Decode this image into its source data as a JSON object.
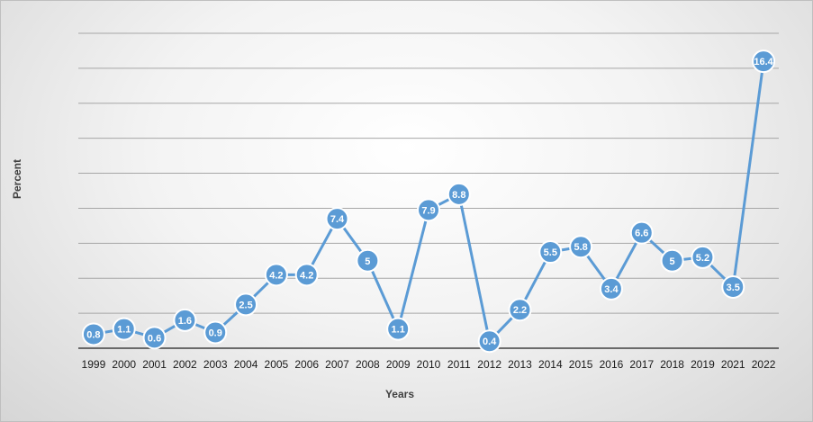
{
  "chart_data": {
    "type": "line",
    "title": "",
    "xlabel": "Years",
    "ylabel": "Percent",
    "x": [
      "1999",
      "2000",
      "2001",
      "2002",
      "2003",
      "2004",
      "2005",
      "2006",
      "2007",
      "2008",
      "2009",
      "2010",
      "2011",
      "2012",
      "2013",
      "2014",
      "2015",
      "2016",
      "2017",
      "2018",
      "2019",
      "2021",
      "2022"
    ],
    "series": [
      {
        "values": [
          0.8,
          1.1,
          0.6,
          1.6,
          0.9,
          2.5,
          4.2,
          4.2,
          7.4,
          5,
          1.1,
          7.9,
          8.8,
          0.4,
          2.2,
          5.5,
          5.8,
          3.4,
          6.6,
          5,
          5.2,
          3.5,
          16.4
        ],
        "labels": [
          "0.8",
          "1.1",
          "0.6",
          "1.6",
          "0.9",
          "2.5",
          "4.2",
          "4.2",
          "7.4",
          "5",
          "1.1",
          "7.9",
          "8.8",
          "0.4",
          "2.2",
          "5.5",
          "5.8",
          "3.4",
          "6.6",
          "5",
          "5.2",
          "3.5",
          "16.4"
        ]
      }
    ],
    "ylim": [
      0,
      18
    ],
    "y_gridline_step": 2,
    "y_tick_labels_shown": false,
    "grid": true,
    "legend": "none",
    "colors": {
      "line": "#5b9bd5",
      "marker": "#5b9bd5",
      "marker_outline": "#ffffff",
      "grid": "#a6a6a6",
      "axis": "#404040"
    }
  }
}
